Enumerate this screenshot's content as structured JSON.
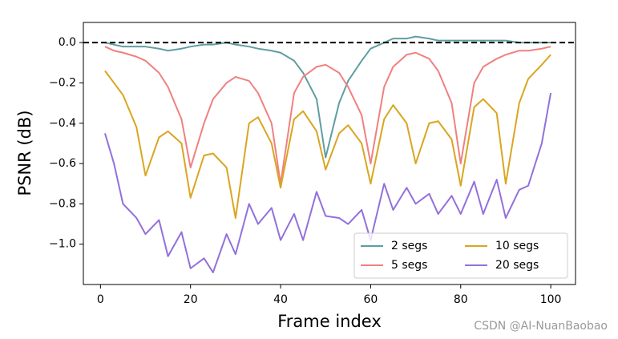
{
  "chart_data": {
    "type": "line",
    "xlabel": "Frame index",
    "ylabel": "PSNR (dB)",
    "x": [
      1,
      3,
      5,
      8,
      10,
      13,
      15,
      18,
      20,
      23,
      25,
      28,
      30,
      33,
      35,
      38,
      40,
      43,
      45,
      48,
      50,
      53,
      55,
      58,
      60,
      63,
      65,
      68,
      70,
      73,
      75,
      78,
      80,
      83,
      85,
      88,
      90,
      93,
      95,
      98,
      100
    ],
    "series": [
      {
        "name": "2 segs",
        "color": "#5f9ea0",
        "values": [
          0,
          -0.01,
          -0.02,
          -0.02,
          -0.02,
          -0.03,
          -0.04,
          -0.03,
          -0.02,
          -0.01,
          -0.01,
          0,
          -0.01,
          -0.02,
          -0.03,
          -0.04,
          -0.05,
          -0.09,
          -0.15,
          -0.28,
          -0.57,
          -0.3,
          -0.19,
          -0.09,
          -0.03,
          0.0,
          0.02,
          0.02,
          0.03,
          0.02,
          0.01,
          0.01,
          0.01,
          0.01,
          0.01,
          0.01,
          0.01,
          0.0,
          0.0,
          0.0,
          0.0
        ]
      },
      {
        "name": "5 segs",
        "color": "#f08080",
        "values": [
          -0.02,
          -0.04,
          -0.05,
          -0.07,
          -0.09,
          -0.15,
          -0.22,
          -0.38,
          -0.62,
          -0.4,
          -0.28,
          -0.2,
          -0.17,
          -0.19,
          -0.25,
          -0.4,
          -0.7,
          -0.25,
          -0.17,
          -0.12,
          -0.11,
          -0.15,
          -0.22,
          -0.36,
          -0.6,
          -0.22,
          -0.12,
          -0.06,
          -0.05,
          -0.08,
          -0.14,
          -0.3,
          -0.6,
          -0.2,
          -0.12,
          -0.08,
          -0.06,
          -0.04,
          -0.04,
          -0.03,
          -0.02
        ]
      },
      {
        "name": "10 segs",
        "color": "#daa520",
        "values": [
          -0.14,
          -0.2,
          -0.26,
          -0.42,
          -0.66,
          -0.47,
          -0.44,
          -0.5,
          -0.77,
          -0.56,
          -0.55,
          -0.62,
          -0.87,
          -0.4,
          -0.37,
          -0.5,
          -0.72,
          -0.38,
          -0.34,
          -0.44,
          -0.63,
          -0.45,
          -0.41,
          -0.5,
          -0.7,
          -0.38,
          -0.31,
          -0.4,
          -0.6,
          -0.4,
          -0.39,
          -0.48,
          -0.71,
          -0.32,
          -0.28,
          -0.35,
          -0.7,
          -0.3,
          -0.18,
          -0.11,
          -0.06
        ]
      },
      {
        "name": "20 segs",
        "color": "#9370db",
        "values": [
          -0.45,
          -0.6,
          -0.8,
          -0.87,
          -0.95,
          -0.88,
          -1.06,
          -0.94,
          -1.12,
          -1.07,
          -1.14,
          -0.95,
          -1.05,
          -0.8,
          -0.9,
          -0.82,
          -0.98,
          -0.85,
          -0.98,
          -0.74,
          -0.86,
          -0.87,
          -0.9,
          -0.83,
          -0.98,
          -0.7,
          -0.83,
          -0.72,
          -0.8,
          -0.75,
          -0.85,
          -0.76,
          -0.85,
          -0.69,
          -0.85,
          -0.68,
          -0.87,
          -0.73,
          -0.71,
          -0.5,
          -0.25
        ]
      }
    ],
    "xlim": [
      -3.8,
      105.5
    ],
    "ylim": [
      -1.2,
      0.1
    ],
    "xticks": [
      0,
      20,
      40,
      60,
      80,
      100
    ],
    "yticks": [
      {
        "value": -1.0,
        "label": "−1.0"
      },
      {
        "value": -0.8,
        "label": "−0.8"
      },
      {
        "value": -0.6,
        "label": "−0.6"
      },
      {
        "value": -0.4,
        "label": "−0.4"
      },
      {
        "value": -0.2,
        "label": "−0.2"
      },
      {
        "value": 0,
        "label": "0.0"
      }
    ],
    "hline": 0,
    "legend": "lower right",
    "legend_columns": 2,
    "watermark": "CSDN @AI-NuanBaobao"
  }
}
